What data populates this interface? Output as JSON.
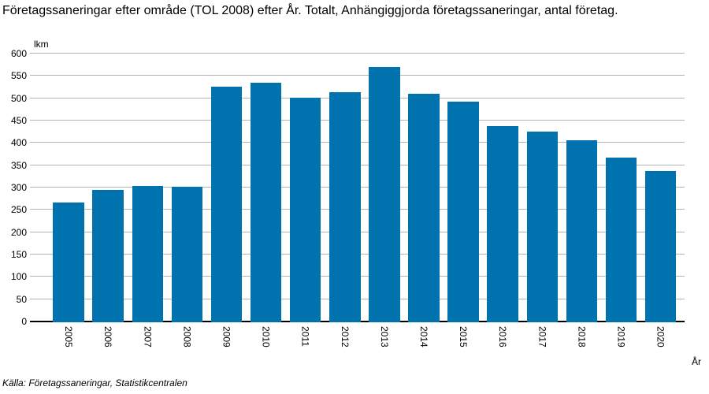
{
  "title": "Företagssaneringar efter område (TOL 2008) efter År. Totalt, Anhängiggjorda företagssaneringar, antal företag.",
  "unit_label": "lkm",
  "xaxis_label": "År",
  "source": "Källa: Företagssaneringar, Statistikcentralen",
  "colors": {
    "bar": "#0073AF",
    "grid": "#B3B3B3",
    "axis": "#000000",
    "text": "#000000",
    "background": "#FFFFFF"
  },
  "chart_data": {
    "type": "bar",
    "title": "Företagssaneringar efter område (TOL 2008) efter År. Totalt, Anhängiggjorda företagssaneringar, antal företag.",
    "categories": [
      "2005",
      "2006",
      "2007",
      "2008",
      "2009",
      "2010",
      "2011",
      "2012",
      "2013",
      "2014",
      "2015",
      "2016",
      "2017",
      "2018",
      "2019",
      "2020"
    ],
    "values": [
      269,
      297,
      306,
      303,
      528,
      537,
      503,
      515,
      571,
      512,
      494,
      440,
      427,
      408,
      368,
      339
    ],
    "xlabel": "År",
    "ylabel": "lkm",
    "ylim": [
      0,
      600
    ],
    "ytick_step": 50,
    "yticks": [
      0,
      50,
      100,
      150,
      200,
      250,
      300,
      350,
      400,
      450,
      500,
      550,
      600
    ],
    "grid": true,
    "legend": "none"
  }
}
